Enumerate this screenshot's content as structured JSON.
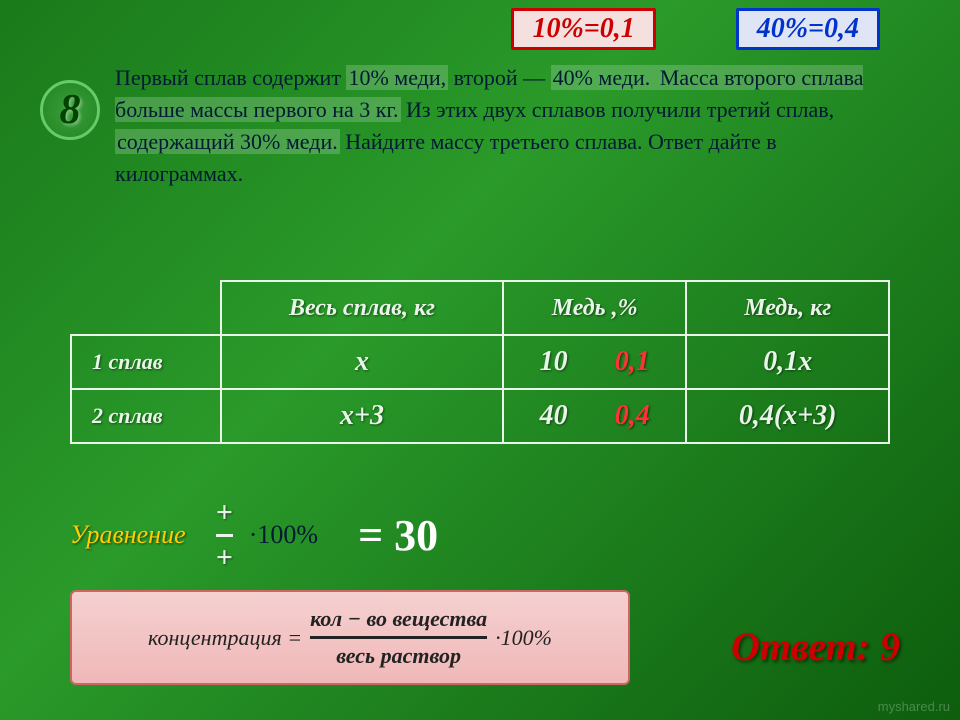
{
  "badges": {
    "left": "10%=0,1",
    "right": "40%=0,4"
  },
  "problem": {
    "number": "8",
    "text_parts": {
      "p1": "Первый сплав содержит ",
      "hl1": "10% меди,",
      "p2": " второй — ",
      "hl2": "40% меди.",
      "p3": " Масса второго сплава больше массы первого на 3 кг.",
      "p4": " Из этих двух сплавов получили третий сплав, ",
      "hl3": "содержащий 30% меди.",
      "p5": " Найдите массу третьего сплава. Ответ дайте в килограммах."
    }
  },
  "table": {
    "headers": {
      "c1": "Весь сплав, кг",
      "c2": "Медь ,%",
      "c3": "Медь, кг"
    },
    "rows": [
      {
        "label": "1 сплав",
        "mass": "х",
        "pct": "10",
        "pct_dec": "0,1",
        "copper": "0,1х"
      },
      {
        "label": "2 сплав",
        "mass": "х+3",
        "pct": "40",
        "pct_dec": "0,4",
        "copper": "0,4(х+3)"
      }
    ]
  },
  "equation": {
    "label": "Уравнение",
    "numerator": "+",
    "denominator": "+",
    "suffix": "·100%",
    "result": "= 30"
  },
  "formula": {
    "lhs": "концентрация =",
    "num": "кол − во вещества",
    "den": "весь раствор",
    "suffix": "·100%"
  },
  "answer": "Ответ: 9",
  "watermark": "myshared.ru",
  "colors": {
    "bg_from": "#1a7a1a",
    "bg_to": "#0d5d0d",
    "red": "#cc0000",
    "blue": "#0033cc",
    "light": "#e8f5e8",
    "yellow": "#ffcc00",
    "formula_bg": "#f0b8b8"
  }
}
